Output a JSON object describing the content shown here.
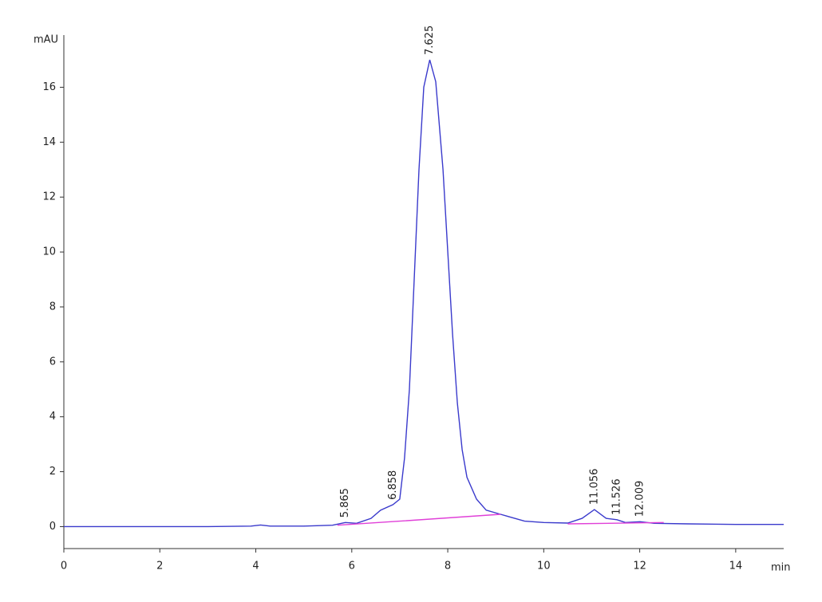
{
  "chart_data": {
    "type": "line",
    "x_label": "min",
    "y_label": "mAU",
    "xlim": [
      0,
      15
    ],
    "ylim": [
      -0.8,
      17.9
    ],
    "xticks": [
      0,
      2,
      4,
      6,
      8,
      10,
      12,
      14
    ],
    "yticks": [
      0,
      2,
      4,
      6,
      8,
      10,
      12,
      14,
      16
    ],
    "series": [
      {
        "color": "#3a3acc",
        "x": [
          0,
          1,
          2,
          3,
          3.9,
          4.1,
          4.3,
          5,
          5.6,
          5.865,
          6.1,
          6.4,
          6.6,
          6.858,
          7.0,
          7.1,
          7.2,
          7.3,
          7.4,
          7.5,
          7.625,
          7.75,
          7.9,
          8.0,
          8.1,
          8.2,
          8.3,
          8.4,
          8.6,
          8.8,
          9.1,
          9.3,
          9.6,
          10,
          10.5,
          10.8,
          11.056,
          11.3,
          11.526,
          11.7,
          12.009,
          12.3,
          13,
          14,
          15
        ],
        "values": [
          0,
          0,
          0,
          0,
          0.02,
          0.06,
          0.02,
          0.02,
          0.05,
          0.15,
          0.12,
          0.3,
          0.6,
          0.8,
          1.0,
          2.5,
          5,
          9,
          13,
          16,
          17.0,
          16.2,
          13,
          10,
          7,
          4.5,
          2.8,
          1.8,
          1.0,
          0.6,
          0.45,
          0.35,
          0.2,
          0.15,
          0.13,
          0.3,
          0.62,
          0.3,
          0.25,
          0.15,
          0.18,
          0.12,
          0.1,
          0.08,
          0.08
        ]
      },
      {
        "color": "#e040d8",
        "x": [
          5.7,
          7.0,
          9.1,
          9.6,
          10.5,
          12.5
        ],
        "values": [
          0.05,
          0.2,
          0.45,
          null,
          0.1,
          0.15
        ]
      }
    ],
    "peak_labels": [
      5.865,
      6.858,
      7.625,
      11.056,
      11.526,
      12.009
    ]
  }
}
